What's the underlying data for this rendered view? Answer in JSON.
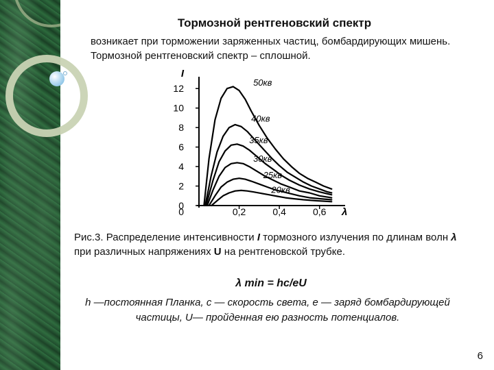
{
  "slide": {
    "title": "Тормозной рентгеновский спектр",
    "intro": "возникает при торможении заряженных частиц, бомбардирующих мишень. Тормозной рентгеновский спектр – сплошной.",
    "caption": {
      "part1": "Рис.3. Распределение интенсивности ",
      "I": "I",
      "part2": " тормозного излучения по длинам волн ",
      "lambda": "λ",
      "part3": " при различных напряжениях ",
      "U": "U",
      "part4": " на рентгеновской трубке."
    },
    "formula": "λ min = hc/eU",
    "note": "h —постоянная Планка, с — скорость света, е — заряд бомбардирующей частицы, U— пройденная ею разность потенциалов.",
    "page_number": "6"
  },
  "chart_data": {
    "type": "line",
    "ylabel": "I",
    "xlabel": "λ",
    "xlim": [
      0,
      0.7
    ],
    "ylim": [
      0,
      13
    ],
    "x_ticks": [
      "0",
      "0,2",
      "0,4",
      "0,6"
    ],
    "x_tick_values": [
      0,
      0.2,
      0.4,
      0.6
    ],
    "y_ticks": [
      "0",
      "2",
      "4",
      "6",
      "8",
      "10",
      "12"
    ],
    "y_tick_values": [
      0,
      2,
      4,
      6,
      8,
      10,
      12
    ],
    "series": [
      {
        "name": "50кв",
        "x": [
          0.025,
          0.05,
          0.08,
          0.11,
          0.14,
          0.17,
          0.2,
          0.23,
          0.26,
          0.3,
          0.34,
          0.38,
          0.42,
          0.46,
          0.5,
          0.54,
          0.58,
          0.62,
          0.66
        ],
        "values": [
          0,
          4.8,
          8.8,
          11.0,
          12.0,
          12.2,
          11.8,
          10.9,
          9.7,
          8.2,
          6.9,
          5.8,
          4.8,
          4.0,
          3.3,
          2.8,
          2.4,
          2.0,
          1.7
        ]
      },
      {
        "name": "40кв",
        "x": [
          0.031,
          0.06,
          0.09,
          0.12,
          0.15,
          0.18,
          0.21,
          0.24,
          0.28,
          0.32,
          0.36,
          0.4,
          0.44,
          0.48,
          0.52,
          0.56,
          0.6,
          0.64,
          0.66
        ],
        "values": [
          0,
          3.0,
          5.5,
          7.1,
          8.0,
          8.3,
          8.1,
          7.6,
          6.7,
          5.8,
          4.9,
          4.1,
          3.4,
          2.9,
          2.4,
          2.0,
          1.7,
          1.4,
          1.3
        ]
      },
      {
        "name": "35кв",
        "x": [
          0.035,
          0.07,
          0.1,
          0.13,
          0.16,
          0.19,
          0.22,
          0.25,
          0.29,
          0.33,
          0.37,
          0.41,
          0.45,
          0.5,
          0.55,
          0.6,
          0.66
        ],
        "values": [
          0,
          2.6,
          4.5,
          5.6,
          6.2,
          6.3,
          6.1,
          5.7,
          5.0,
          4.3,
          3.7,
          3.1,
          2.6,
          2.1,
          1.7,
          1.4,
          1.1
        ]
      },
      {
        "name": "30кв",
        "x": [
          0.041,
          0.07,
          0.1,
          0.13,
          0.16,
          0.19,
          0.22,
          0.25,
          0.29,
          0.33,
          0.37,
          0.41,
          0.45,
          0.5,
          0.55,
          0.6,
          0.66
        ],
        "values": [
          0,
          1.6,
          3.0,
          3.9,
          4.3,
          4.4,
          4.3,
          4.0,
          3.5,
          3.0,
          2.6,
          2.2,
          1.9,
          1.5,
          1.3,
          1.0,
          0.8
        ]
      },
      {
        "name": "25кв",
        "x": [
          0.05,
          0.08,
          0.11,
          0.14,
          0.17,
          0.2,
          0.23,
          0.26,
          0.3,
          0.34,
          0.38,
          0.42,
          0.46,
          0.5,
          0.55,
          0.6,
          0.66
        ],
        "values": [
          0,
          1.0,
          1.9,
          2.4,
          2.7,
          2.8,
          2.7,
          2.5,
          2.2,
          1.9,
          1.6,
          1.4,
          1.2,
          1.0,
          0.8,
          0.7,
          0.6
        ]
      },
      {
        "name": "20кв",
        "x": [
          0.062,
          0.09,
          0.12,
          0.15,
          0.18,
          0.21,
          0.24,
          0.27,
          0.31,
          0.35,
          0.39,
          0.43,
          0.47,
          0.52,
          0.58,
          0.66
        ],
        "values": [
          0,
          0.5,
          1.0,
          1.3,
          1.5,
          1.55,
          1.5,
          1.4,
          1.25,
          1.1,
          0.95,
          0.8,
          0.7,
          0.6,
          0.5,
          0.4
        ]
      }
    ],
    "label_positions": [
      {
        "x": 0.27,
        "y": 12.3
      },
      {
        "x": 0.26,
        "y": 8.6
      },
      {
        "x": 0.25,
        "y": 6.4
      },
      {
        "x": 0.27,
        "y": 4.5
      },
      {
        "x": 0.32,
        "y": 2.8
      },
      {
        "x": 0.36,
        "y": 1.3
      }
    ]
  }
}
